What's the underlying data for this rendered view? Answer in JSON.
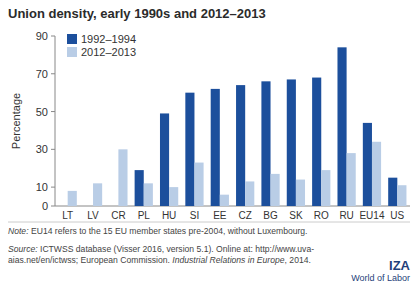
{
  "chart_data": {
    "type": "bar",
    "title": "Union density, early 1990s and 2012–2013",
    "y_label": "Percentage",
    "categories": [
      "LT",
      "LV",
      "CR",
      "PL",
      "HU",
      "SI",
      "EE",
      "CZ",
      "BG",
      "SK",
      "RO",
      "RU",
      "EU14",
      "US"
    ],
    "series": [
      {
        "name": "1992–1994",
        "color": "#1c4f9c",
        "values": [
          null,
          null,
          null,
          19,
          49,
          60,
          62,
          64,
          66,
          67,
          68,
          84,
          44,
          15
        ]
      },
      {
        "name": "2012–2013",
        "color": "#b9cde6",
        "values": [
          8,
          12,
          30,
          12,
          10,
          23,
          6,
          13,
          17,
          14,
          19,
          28,
          34,
          11
        ]
      }
    ],
    "ylim": [
      0,
      90
    ],
    "yticks": [
      0,
      10,
      30,
      50,
      70,
      90
    ],
    "grid": false,
    "legend": "top-left",
    "note": {
      "label": "Note:",
      "text": "EU14 refers to the 15 EU member states pre-2004, without Luxembourg."
    },
    "source": {
      "label": "Source:",
      "parts": [
        "ICTWSS database (Visser 2016, version 5.1). Online at: http://www.uva-aias.net/en/ictwss; European Commission. ",
        "Industrial Relations in Europe",
        ", 2014."
      ]
    },
    "logo": [
      "IZA",
      "World of Labor"
    ]
  }
}
